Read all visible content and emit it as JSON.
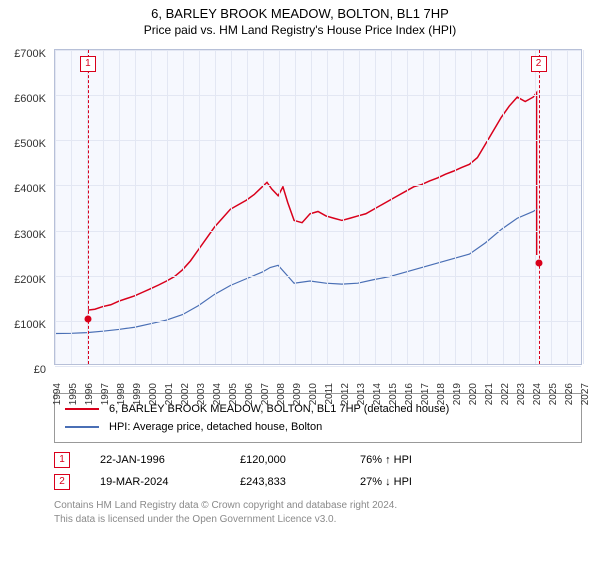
{
  "title": "6, BARLEY BROOK MEADOW, BOLTON, BL1 7HP",
  "subtitle": "Price paid vs. HM Land Registry's House Price Index (HPI)",
  "chart": {
    "type": "line",
    "background_color": "#f6f8fe",
    "plot_border_color": "#b7c0d8",
    "grid_color": "#e3e7f3",
    "ylim": [
      0,
      700000
    ],
    "ytick_step": 100000,
    "yticks": [
      "£0",
      "£100K",
      "£200K",
      "£300K",
      "£400K",
      "£500K",
      "£600K",
      "£700K"
    ],
    "xlim": [
      1994,
      2027
    ],
    "xticks": [
      1994,
      1995,
      1996,
      1997,
      1998,
      1999,
      2000,
      2001,
      2002,
      2003,
      2004,
      2005,
      2006,
      2007,
      2008,
      2009,
      2010,
      2011,
      2012,
      2013,
      2014,
      2015,
      2016,
      2017,
      2018,
      2019,
      2020,
      2021,
      2022,
      2023,
      2024,
      2025,
      2026,
      2027
    ],
    "axis_fontsize": 11,
    "series": [
      {
        "name": "6, BARLEY BROOK MEADOW, BOLTON, BL1 7HP (detached house)",
        "color": "#d9001b",
        "line_width": 1.5,
        "data": [
          [
            1996.06,
            120000
          ],
          [
            1996.5,
            122000
          ],
          [
            1997,
            128000
          ],
          [
            1997.5,
            132000
          ],
          [
            1998,
            140000
          ],
          [
            1998.5,
            146000
          ],
          [
            1999,
            152000
          ],
          [
            1999.5,
            160000
          ],
          [
            2000,
            168000
          ],
          [
            2000.5,
            176000
          ],
          [
            2001,
            185000
          ],
          [
            2001.5,
            195000
          ],
          [
            2002,
            210000
          ],
          [
            2002.5,
            230000
          ],
          [
            2003,
            255000
          ],
          [
            2003.5,
            280000
          ],
          [
            2004,
            305000
          ],
          [
            2004.5,
            325000
          ],
          [
            2005,
            345000
          ],
          [
            2005.5,
            355000
          ],
          [
            2006,
            365000
          ],
          [
            2006.5,
            378000
          ],
          [
            2007,
            395000
          ],
          [
            2007.3,
            405000
          ],
          [
            2007.6,
            390000
          ],
          [
            2008,
            375000
          ],
          [
            2008.3,
            395000
          ],
          [
            2008.6,
            360000
          ],
          [
            2009,
            320000
          ],
          [
            2009.5,
            315000
          ],
          [
            2010,
            335000
          ],
          [
            2010.5,
            340000
          ],
          [
            2011,
            330000
          ],
          [
            2011.5,
            325000
          ],
          [
            2012,
            320000
          ],
          [
            2012.5,
            325000
          ],
          [
            2013,
            330000
          ],
          [
            2013.5,
            335000
          ],
          [
            2014,
            345000
          ],
          [
            2014.5,
            355000
          ],
          [
            2015,
            365000
          ],
          [
            2015.5,
            375000
          ],
          [
            2016,
            385000
          ],
          [
            2016.5,
            395000
          ],
          [
            2017,
            400000
          ],
          [
            2017.5,
            408000
          ],
          [
            2018,
            415000
          ],
          [
            2018.5,
            423000
          ],
          [
            2019,
            430000
          ],
          [
            2019.5,
            438000
          ],
          [
            2020,
            445000
          ],
          [
            2020.5,
            460000
          ],
          [
            2021,
            490000
          ],
          [
            2021.5,
            520000
          ],
          [
            2022,
            550000
          ],
          [
            2022.5,
            575000
          ],
          [
            2023,
            595000
          ],
          [
            2023.5,
            585000
          ],
          [
            2024,
            595000
          ],
          [
            2024.21,
            605000
          ],
          [
            2024.22,
            243000
          ]
        ]
      },
      {
        "name": "HPI: Average price, detached house, Bolton",
        "color": "#4a6fb5",
        "line_width": 1.2,
        "data": [
          [
            1994,
            68000
          ],
          [
            1995,
            68500
          ],
          [
            1996,
            70000
          ],
          [
            1997,
            73000
          ],
          [
            1998,
            77000
          ],
          [
            1999,
            82000
          ],
          [
            2000,
            90000
          ],
          [
            2001,
            98000
          ],
          [
            2002,
            110000
          ],
          [
            2003,
            130000
          ],
          [
            2004,
            155000
          ],
          [
            2005,
            175000
          ],
          [
            2006,
            190000
          ],
          [
            2007,
            205000
          ],
          [
            2007.5,
            215000
          ],
          [
            2008,
            220000
          ],
          [
            2008.5,
            200000
          ],
          [
            2009,
            180000
          ],
          [
            2010,
            185000
          ],
          [
            2011,
            180000
          ],
          [
            2012,
            178000
          ],
          [
            2013,
            180000
          ],
          [
            2014,
            188000
          ],
          [
            2015,
            195000
          ],
          [
            2016,
            205000
          ],
          [
            2017,
            215000
          ],
          [
            2018,
            225000
          ],
          [
            2019,
            235000
          ],
          [
            2020,
            245000
          ],
          [
            2021,
            270000
          ],
          [
            2022,
            300000
          ],
          [
            2023,
            325000
          ],
          [
            2024,
            340000
          ],
          [
            2024.22,
            345000
          ]
        ]
      }
    ],
    "markers": [
      {
        "num": "1",
        "x": 1996.06,
        "y": 120000
      },
      {
        "num": "2",
        "x": 2024.22,
        "y": 243000
      }
    ],
    "marker_color": "#d9001b"
  },
  "legend": {
    "border_color": "#999999",
    "items": [
      {
        "color": "#d9001b",
        "label": "6, BARLEY BROOK MEADOW, BOLTON, BL1 7HP (detached house)"
      },
      {
        "color": "#4a6fb5",
        "label": "HPI: Average price, detached house, Bolton"
      }
    ]
  },
  "points": [
    {
      "num": "1",
      "date": "22-JAN-1996",
      "price": "£120,000",
      "delta": "76% ↑ HPI"
    },
    {
      "num": "2",
      "date": "19-MAR-2024",
      "price": "£243,833",
      "delta": "27% ↓ HPI"
    }
  ],
  "footer": {
    "line1": "Contains HM Land Registry data © Crown copyright and database right 2024.",
    "line2": "This data is licensed under the Open Government Licence v3.0."
  }
}
